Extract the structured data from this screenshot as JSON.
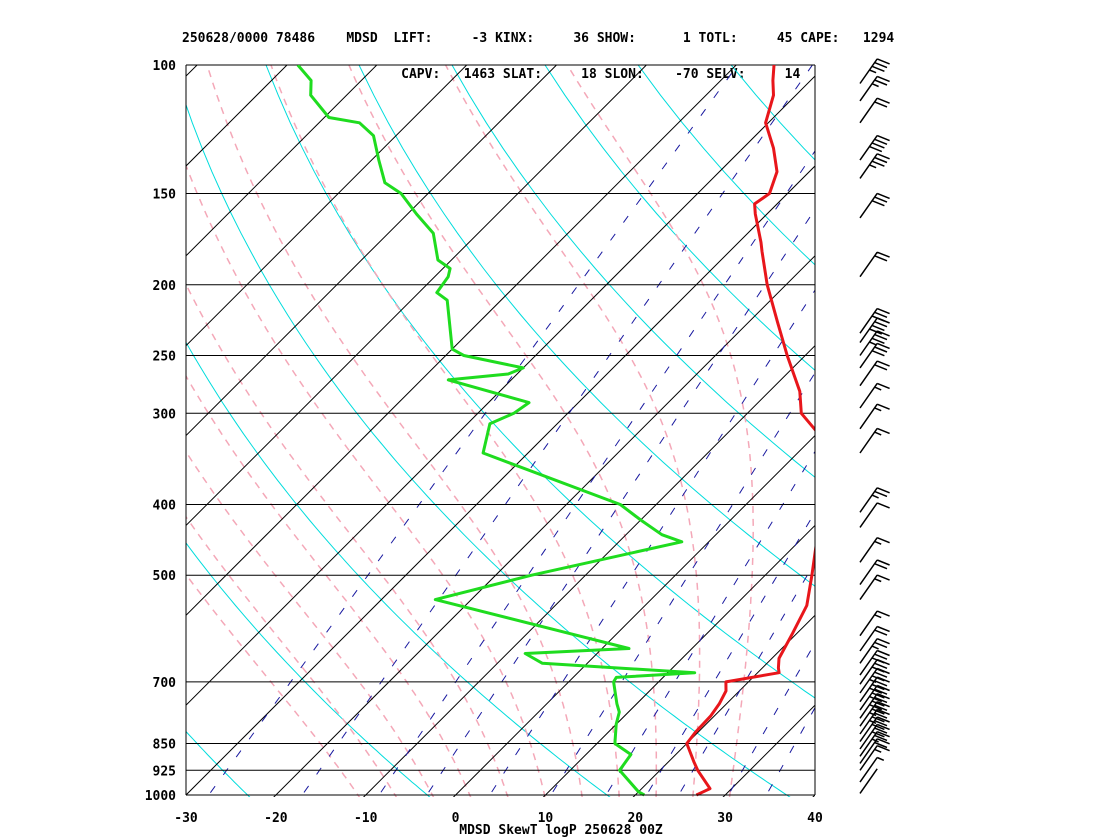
{
  "header": {
    "line1": "250628/0000 78486    MDSD  LIFT:     -3 KINX:     36 SHOW:      1 TOTL:     45 CAPE:   1294",
    "line2": "                            CAPV:   1463 SLAT:     18 SLON:    -70 SELV:     14"
  },
  "footer": "MDSD SkewT logP 250628 00Z",
  "colors": {
    "temperature": "#e8161b",
    "dewpoint": "#1fdc1f",
    "isotherm": "#000000",
    "isobar": "#000000",
    "dry_adiabat": "#00dcdc",
    "moist_adiabat": "#f4a8b8",
    "mixing_ratio": "#1a1aa0",
    "wind_barb": "#000000"
  },
  "chart_data": {
    "type": "line",
    "subtype": "skew-T log-P diagram",
    "x_axis": {
      "unit": "°C",
      "range": [
        -30,
        40
      ],
      "ticks": [
        -30,
        -20,
        -10,
        0,
        10,
        20,
        30,
        40
      ]
    },
    "y_axis": {
      "unit": "hPa",
      "scale": "log",
      "range": [
        1000,
        100
      ],
      "ticks": [
        1000,
        925,
        850,
        700,
        500,
        400,
        300,
        250,
        200,
        150,
        100
      ]
    },
    "grid": true,
    "series": [
      {
        "kind": "temperature",
        "points": [
          [
            1000,
            26.8
          ],
          [
            990,
            27.2
          ],
          [
            980,
            27.6
          ],
          [
            925,
            24.2
          ],
          [
            900,
            22.8
          ],
          [
            850,
            20.0
          ],
          [
            820,
            19.7
          ],
          [
            780,
            19.6
          ],
          [
            750,
            19.2
          ],
          [
            720,
            18.5
          ],
          [
            700,
            17.5
          ],
          [
            680,
            22.4
          ],
          [
            670,
            21.8
          ],
          [
            650,
            20.8
          ],
          [
            600,
            19.5
          ],
          [
            550,
            18.0
          ],
          [
            500,
            15.2
          ],
          [
            450,
            12.0
          ],
          [
            420,
            9.5
          ],
          [
            400,
            7.8
          ],
          [
            350,
            3.8
          ],
          [
            320,
            0.2
          ],
          [
            300,
            -4.0
          ],
          [
            280,
            -6.6
          ],
          [
            250,
            -12.0
          ],
          [
            225,
            -16.8
          ],
          [
            200,
            -22.1
          ],
          [
            180,
            -26.4
          ],
          [
            175,
            -27.5
          ],
          [
            160,
            -31.3
          ],
          [
            155,
            -32.5
          ],
          [
            150,
            -32.0
          ],
          [
            140,
            -33.6
          ],
          [
            130,
            -36.6
          ],
          [
            120,
            -40.3
          ],
          [
            110,
            -42.5
          ],
          [
            105,
            -44.2
          ],
          [
            100,
            -45.8
          ]
        ]
      },
      {
        "kind": "dewpoint",
        "points": [
          [
            1000,
            21.0
          ],
          [
            990,
            20.0
          ],
          [
            925,
            15.5
          ],
          [
            880,
            15.0
          ],
          [
            850,
            12.0
          ],
          [
            800,
            10.0
          ],
          [
            770,
            9.0
          ],
          [
            750,
            7.8
          ],
          [
            700,
            5.0
          ],
          [
            690,
            4.8
          ],
          [
            680,
            13.0
          ],
          [
            660,
            -5.0
          ],
          [
            640,
            -8.0
          ],
          [
            630,
            3.0
          ],
          [
            540,
            -24.0
          ],
          [
            500,
            -16.0
          ],
          [
            450,
            -3.0
          ],
          [
            440,
            -6.0
          ],
          [
            420,
            -10.0
          ],
          [
            400,
            -14.0
          ],
          [
            340,
            -35.0
          ],
          [
            310,
            -37.5
          ],
          [
            300,
            -36.0
          ],
          [
            290,
            -35.5
          ],
          [
            270,
            -47.0
          ],
          [
            265,
            -41.0
          ],
          [
            260,
            -40.0
          ],
          [
            250,
            -48.0
          ],
          [
            245,
            -50.0
          ],
          [
            210,
            -56.0
          ],
          [
            205,
            -58.0
          ],
          [
            195,
            -58.5
          ],
          [
            190,
            -59.2
          ],
          [
            185,
            -61.5
          ],
          [
            170,
            -65.0
          ],
          [
            160,
            -69.0
          ],
          [
            150,
            -73.0
          ],
          [
            145,
            -76.0
          ],
          [
            135,
            -79.2
          ],
          [
            125,
            -82.5
          ],
          [
            120,
            -85.5
          ],
          [
            118,
            -89.5
          ],
          [
            110,
            -94.0
          ],
          [
            105,
            -95.6
          ],
          [
            100,
            -98.8
          ]
        ]
      }
    ],
    "wind_barbs": [
      {
        "p": 995,
        "flags": 0,
        "full": 0,
        "half": 0
      },
      {
        "p": 960,
        "flags": 0,
        "full": 0,
        "half": 1
      },
      {
        "p": 925,
        "flags": 0,
        "full": 1,
        "half": 1
      },
      {
        "p": 905,
        "flags": 0,
        "full": 2,
        "half": 0
      },
      {
        "p": 885,
        "flags": 0,
        "full": 2,
        "half": 1
      },
      {
        "p": 865,
        "flags": 0,
        "full": 3,
        "half": 0
      },
      {
        "p": 845,
        "flags": 0,
        "full": 3,
        "half": 0
      },
      {
        "p": 825,
        "flags": 0,
        "full": 3,
        "half": 1
      },
      {
        "p": 805,
        "flags": 0,
        "full": 3,
        "half": 1
      },
      {
        "p": 785,
        "flags": 0,
        "full": 4,
        "half": 0
      },
      {
        "p": 765,
        "flags": 0,
        "full": 4,
        "half": 0
      },
      {
        "p": 745,
        "flags": 0,
        "full": 4,
        "half": 0
      },
      {
        "p": 725,
        "flags": 0,
        "full": 3,
        "half": 1
      },
      {
        "p": 705,
        "flags": 0,
        "full": 3,
        "half": 0
      },
      {
        "p": 685,
        "flags": 0,
        "full": 3,
        "half": 0
      },
      {
        "p": 660,
        "flags": 0,
        "full": 2,
        "half": 1
      },
      {
        "p": 635,
        "flags": 0,
        "full": 2,
        "half": 0
      },
      {
        "p": 605,
        "flags": 0,
        "full": 1,
        "half": 1
      },
      {
        "p": 540,
        "flags": 0,
        "full": 1,
        "half": 1
      },
      {
        "p": 515,
        "flags": 0,
        "full": 2,
        "half": 0
      },
      {
        "p": 480,
        "flags": 0,
        "full": 1,
        "half": 1
      },
      {
        "p": 430,
        "flags": 0,
        "full": 1,
        "half": 0
      },
      {
        "p": 410,
        "flags": 0,
        "full": 2,
        "half": 1
      },
      {
        "p": 340,
        "flags": 0,
        "full": 1,
        "half": 1
      },
      {
        "p": 315,
        "flags": 0,
        "full": 1,
        "half": 1
      },
      {
        "p": 295,
        "flags": 0,
        "full": 1,
        "half": 1
      },
      {
        "p": 275,
        "flags": 0,
        "full": 2,
        "half": 0
      },
      {
        "p": 260,
        "flags": 0,
        "full": 3,
        "half": 0
      },
      {
        "p": 250,
        "flags": 0,
        "full": 3,
        "half": 1
      },
      {
        "p": 240,
        "flags": 0,
        "full": 4,
        "half": 0
      },
      {
        "p": 233,
        "flags": 0,
        "full": 3,
        "half": 0
      },
      {
        "p": 195,
        "flags": 0,
        "full": 2,
        "half": 0
      },
      {
        "p": 162,
        "flags": 0,
        "full": 3,
        "half": 0
      },
      {
        "p": 143,
        "flags": 0,
        "full": 3,
        "half": 1
      },
      {
        "p": 135,
        "flags": 0,
        "full": 4,
        "half": 0
      },
      {
        "p": 120,
        "flags": 0,
        "full": 2,
        "half": 0
      },
      {
        "p": 112,
        "flags": 0,
        "full": 2,
        "half": 1
      },
      {
        "p": 106,
        "flags": 0,
        "full": 3,
        "half": 1
      }
    ]
  }
}
